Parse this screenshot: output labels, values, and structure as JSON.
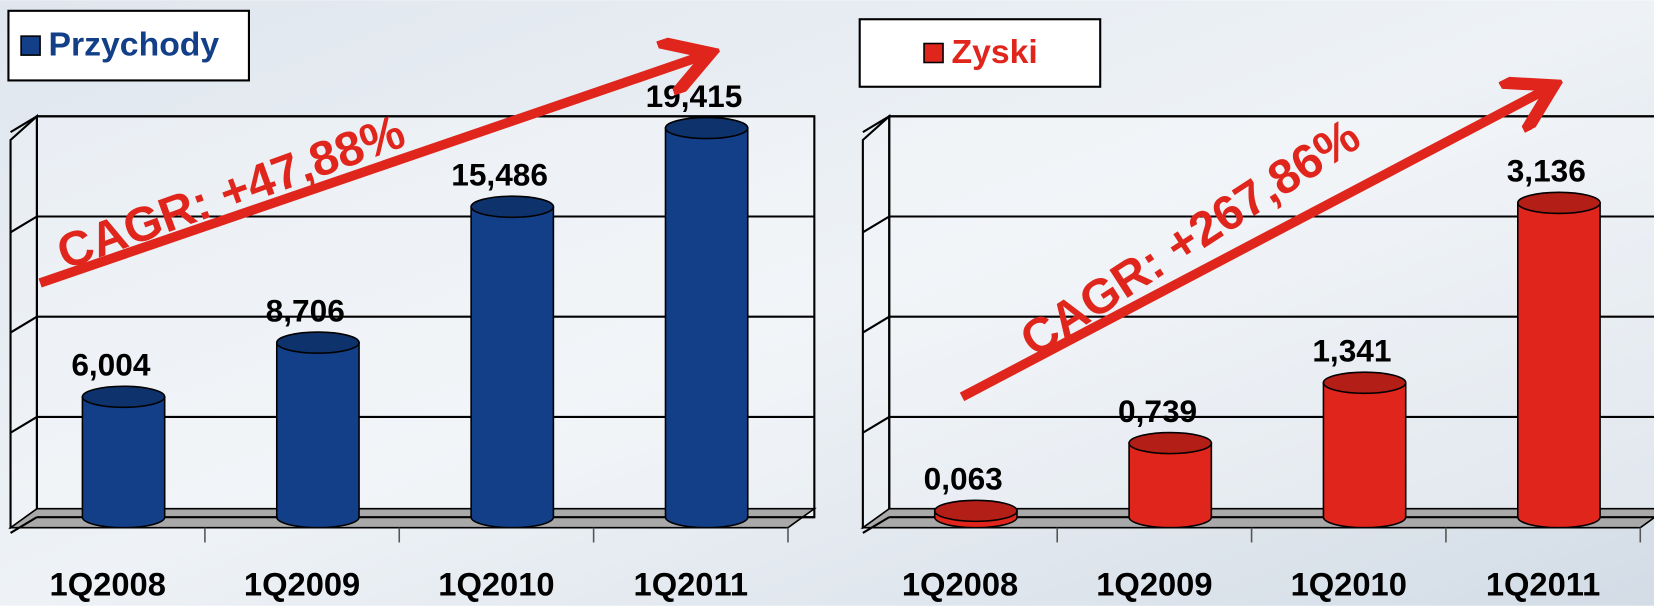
{
  "chart_data": [
    {
      "type": "bar",
      "legend": "Przychody",
      "annotation": "CAGR: +47,88%",
      "categories": [
        "1Q2008",
        "1Q2009",
        "1Q2010",
        "1Q2011"
      ],
      "values": [
        6.004,
        8.706,
        15.486,
        19.415
      ],
      "value_labels": [
        "6,004",
        "8,706",
        "15,486",
        "19,415"
      ],
      "color": "#123f87",
      "ylim": [
        0,
        20
      ],
      "yticks": [
        0,
        5,
        10,
        15,
        20
      ],
      "grid": true
    },
    {
      "type": "bar",
      "legend": "Zyski",
      "annotation": "CAGR: +267,86%",
      "categories": [
        "1Q2008",
        "1Q2009",
        "1Q2010",
        "1Q2011"
      ],
      "values": [
        0.063,
        0.739,
        1.341,
        3.136
      ],
      "value_labels": [
        "0,063",
        "0,739",
        "1,341",
        "3,136"
      ],
      "color": "#e0261c",
      "ylim": [
        0,
        4
      ],
      "yticks": [
        0,
        1,
        2,
        3,
        4
      ],
      "grid": true
    }
  ]
}
